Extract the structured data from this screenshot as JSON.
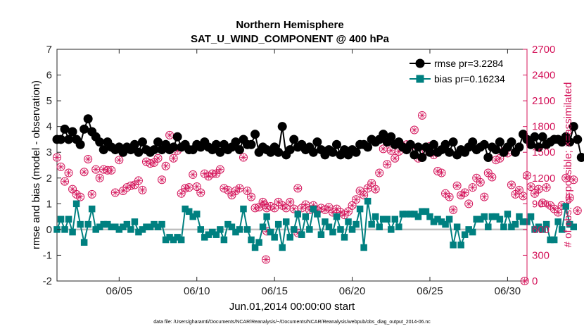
{
  "chart_data": {
    "type": "line",
    "title": "Northern Hemisphere",
    "subtitle": "SAT_U_WIND_COMPONENT @ 400 hPa",
    "xlabel": "Jun.01,2014 00:00:00 start",
    "ylabel_left": "rmse and bias (model - observation)",
    "ylabel_right": "# of obs: o=possible; ×=assimilated",
    "footnote": "data file: /Users/gharamti/Documents/NCAR/Reanalysis/~/Documents/NCAR/Reanalysis/webpub/obs_diag_output_2014-06.nc",
    "xlim": [
      1,
      31.25
    ],
    "ylim_left": [
      -2,
      7
    ],
    "ylim_right": [
      0,
      2700
    ],
    "x_ticks": [
      5,
      10,
      15,
      20,
      25,
      30
    ],
    "x_tick_labels": [
      "06/05",
      "06/10",
      "06/15",
      "06/20",
      "06/25",
      "06/30"
    ],
    "y_ticks_left": [
      "-2",
      "-1",
      "0",
      "1",
      "2",
      "3",
      "4",
      "5",
      "6",
      "7"
    ],
    "y_ticks_right": [
      "0",
      "300",
      "600",
      "900",
      "1200",
      "1500",
      "1800",
      "2100",
      "2400",
      "2700"
    ],
    "legend_position": "top-right",
    "colors": {
      "rmse": "#000000",
      "bias": "#008080",
      "obs": "#d4145a",
      "zero_line": "#bfbfbf"
    },
    "series": [
      {
        "name": "rmse pr=3.2284",
        "key": "rmse",
        "marker": "circle",
        "x_start": 1.0,
        "x_step": 0.25,
        "values": [
          3.5,
          3.5,
          3.9,
          3.5,
          3.8,
          3.5,
          3.3,
          3.9,
          4.3,
          3.8,
          3.6,
          3.4,
          3.1,
          3.4,
          3.2,
          3.1,
          3.2,
          3.0,
          3.2,
          3.1,
          3.3,
          3.0,
          3.4,
          3.1,
          3.0,
          3.1,
          3.4,
          3.1,
          3.3,
          3.1,
          3.2,
          3.6,
          3.2,
          3.3,
          3.1,
          3.1,
          3.3,
          3.2,
          3.4,
          3.2,
          3.1,
          3.3,
          3.0,
          3.3,
          3.1,
          3.2,
          3.4,
          3.1,
          3.5,
          3.3,
          3.3,
          3.7,
          3.0,
          3.2,
          3.1,
          3.0,
          3.2,
          3.0,
          4.0,
          2.9,
          3.1,
          3.5,
          3.2,
          3.3,
          3.1,
          3.2,
          3.0,
          3.4,
          3.1,
          2.9,
          3.1,
          3.0,
          3.3,
          2.9,
          3.1,
          2.9,
          3.1,
          3.0,
          3.3,
          3.3,
          3.2,
          3.5,
          3.4,
          3.5,
          3.7,
          3.4,
          3.6,
          3.3,
          3.4,
          3.2,
          3.1,
          3.3,
          2.9,
          3.2,
          2.8,
          3.2,
          3.0,
          3.3,
          3.0,
          3.1,
          3.3,
          3.0,
          3.4,
          2.9,
          3.1,
          3.0,
          3.2,
          3.4,
          3.1,
          3.2,
          3.3,
          2.8,
          3.2,
          3.1,
          3.4,
          3.0,
          3.2,
          3.4,
          3.0,
          3.2,
          3.7,
          3.5,
          3.3,
          3.6,
          3.2,
          3.6,
          3.3,
          3.4,
          3.5,
          3.5,
          3.4,
          3.6,
          3.4,
          4.0,
          3.5,
          2.8
        ]
      },
      {
        "name": "bias pr=0.16234",
        "key": "bias",
        "marker": "square",
        "x_start": 1.0,
        "x_step": 0.25,
        "values": [
          0.0,
          0.4,
          0.0,
          0.4,
          -0.1,
          1.0,
          0.2,
          -0.5,
          0.2,
          0.8,
          0.0,
          0.1,
          0.2,
          0.2,
          0.1,
          0.1,
          0.0,
          0.1,
          0.2,
          0.0,
          0.3,
          -0.1,
          0.0,
          0.1,
          0.1,
          0.2,
          0.1,
          0.2,
          -0.4,
          -0.3,
          -0.4,
          -0.3,
          -0.4,
          0.8,
          0.7,
          0.5,
          0.6,
          0.0,
          -0.3,
          -0.2,
          -0.1,
          -0.2,
          0.0,
          -0.4,
          0.2,
          0.1,
          -0.1,
          0.0,
          0.8,
          0.0,
          -0.4,
          -0.7,
          -0.5,
          0.1,
          0.5,
          -0.1,
          -0.3,
          0.2,
          -0.7,
          0.3,
          -0.3,
          0.0,
          0.6,
          -0.2,
          0.5,
          0.0,
          0.8,
          0.6,
          -0.2,
          0.3,
          0.1,
          -0.1,
          0.5,
          0.0,
          -0.3,
          0.3,
          0.0,
          0.2,
          0.8,
          -0.7,
          1.1,
          0.2,
          0.5,
          0.1,
          0.4,
          0.4,
          0.0,
          0.4,
          0.1,
          0.6,
          0.6,
          0.6,
          0.6,
          0.5,
          0.7,
          0.7,
          0.5,
          0.3,
          0.4,
          0.3,
          0.2,
          0.4,
          -0.6,
          0.1,
          -0.6,
          -0.2,
          0.0,
          -0.1,
          0.4,
          0.4,
          0.5,
          0.1,
          0.5,
          0.5,
          0.4,
          0.1,
          0.6,
          0.1,
          0.2,
          0.5,
          0.3,
          0.3,
          0.5,
          0.0,
          0.1,
          0.0,
          0.2,
          -0.4,
          -0.4,
          0.3,
          0.0,
          0.9,
          0.2,
          0.1
        ]
      },
      {
        "name": "obs_assimilated",
        "key": "obs",
        "marker": "circle-asterisk",
        "x_start": 1.0,
        "x_step": 0.25,
        "values": [
          1440,
          1330,
          1160,
          1260,
          1070,
          1010,
          980,
          1270,
          1420,
          1010,
          1300,
          1200,
          1300,
          1290,
          1290,
          1030,
          1410,
          1050,
          1090,
          1110,
          1120,
          1170,
          1060,
          1390,
          1370,
          1380,
          1430,
          1180,
          1340,
          1700,
          1430,
          1520,
          1020,
          1080,
          1090,
          1240,
          1100,
          1030,
          1250,
          1220,
          1250,
          1250,
          1300,
          1080,
          1060,
          1000,
          1050,
          1080,
          1440,
          1050,
          980,
          850,
          860,
          920,
          850,
          870,
          850,
          920,
          880,
          850,
          920,
          840,
          1080,
          850,
          890,
          830,
          880,
          820,
          850,
          830,
          860,
          800,
          840,
          800,
          770,
          810,
          880,
          950,
          1050,
          1000,
          1080,
          1140,
          1070,
          1260,
          1540,
          1360,
          1520,
          1430,
          1510,
          1560,
          1590,
          1570,
          1760,
          1430,
          1930,
          1520,
          1570,
          1470,
          1280,
          1260,
          1020,
          980,
          830,
          1110,
          1000,
          1030,
          900,
          1090,
          1200,
          1150,
          980,
          1260,
          1210,
          1410,
          1430,
          1510,
          1490,
          1120,
          1010,
          1060,
          990,
          1230,
          1100,
          1020,
          1070,
          910,
          1090,
          880,
          840,
          800,
          880,
          1200,
          970,
          1180,
          820
        ]
      },
      {
        "name": "obs_possible_extra",
        "key": "obs_extra",
        "points": [
          [
            14.35,
            890
          ],
          [
            14.45,
            250
          ],
          [
            14.5,
            580
          ],
          [
            16.5,
            560
          ],
          [
            31.1,
            0
          ]
        ]
      }
    ]
  }
}
